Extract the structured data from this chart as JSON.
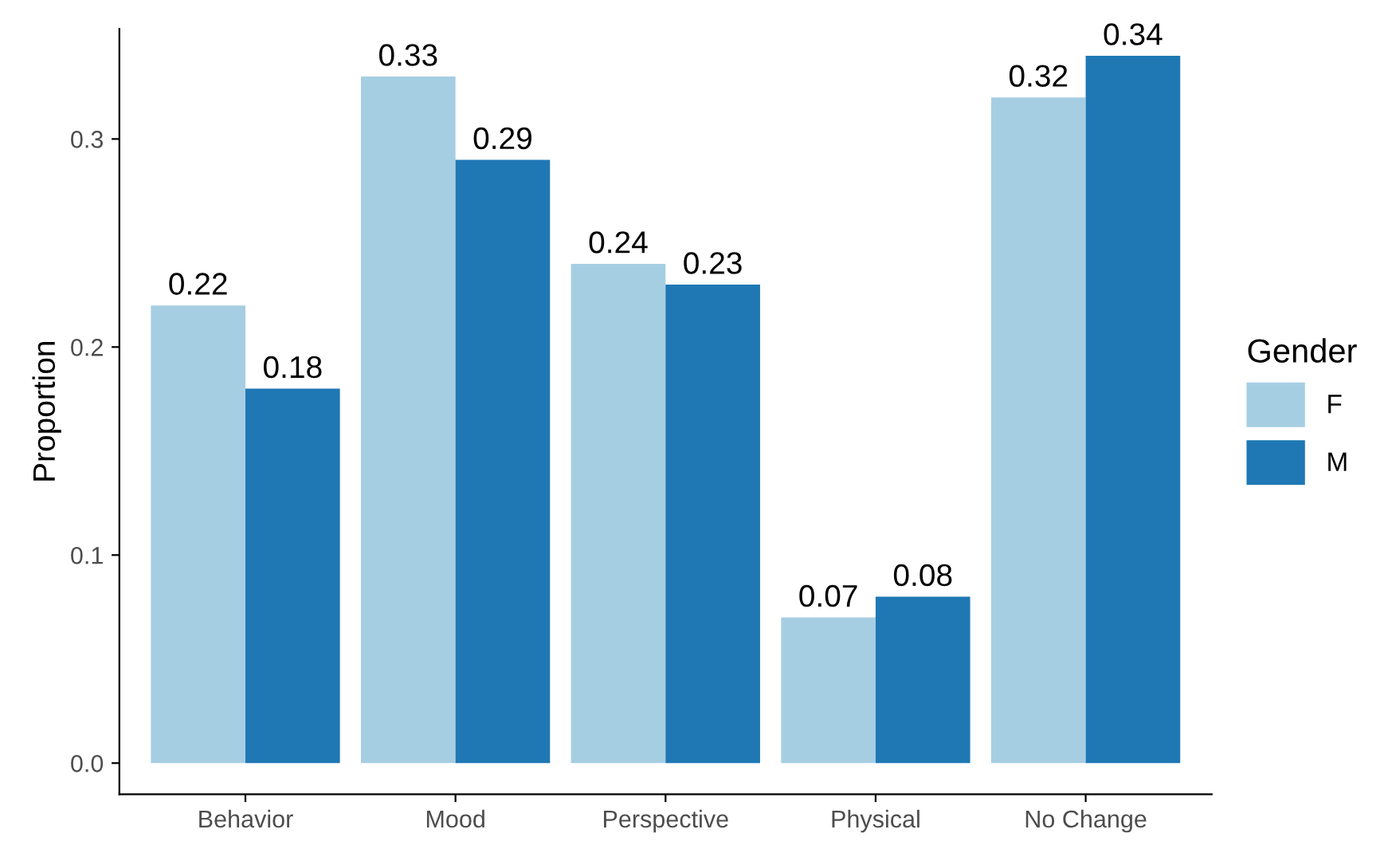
{
  "chart_data": {
    "type": "bar",
    "ylabel": "Proportion",
    "legend_title": "Gender",
    "legend": "right",
    "data_labels": true,
    "grid": false,
    "categories": [
      "Behavior",
      "Mood",
      "Perspective",
      "Physical",
      "No Change"
    ],
    "series": [
      {
        "name": "F",
        "color": "#a6cee3",
        "values": [
          0.22,
          0.33,
          0.24,
          0.07,
          0.32
        ]
      },
      {
        "name": "M",
        "color": "#1f78b4",
        "values": [
          0.18,
          0.29,
          0.23,
          0.08,
          0.34
        ]
      }
    ],
    "ylim": [
      -0.015,
      0.353
    ],
    "yticks": [
      {
        "value": 0,
        "label": "0.0"
      },
      0.1,
      0.2,
      0.3
    ]
  }
}
